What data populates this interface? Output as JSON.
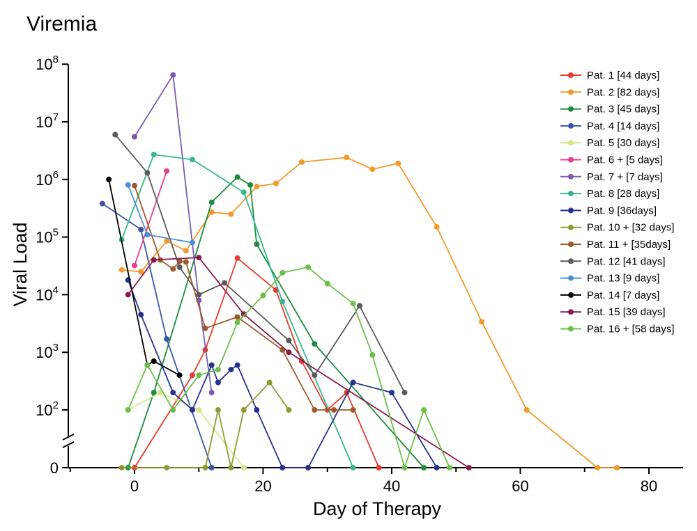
{
  "chart_data": {
    "type": "line",
    "title": "Viremia",
    "xlabel": "Day of Therapy",
    "ylabel": "Viral Load",
    "yscale": "log with zero break",
    "xlim": [
      -10,
      85
    ],
    "ylim": [
      0,
      100000000
    ],
    "x_ticks": [
      "0",
      "20",
      "40",
      "60",
      "80"
    ],
    "x_tick_values": [
      0,
      20,
      40,
      60,
      80
    ],
    "y_ticks": [
      {
        "base": "10",
        "exp": "8",
        "value": 100000000
      },
      {
        "base": "10",
        "exp": "7",
        "value": 10000000
      },
      {
        "base": "10",
        "exp": "6",
        "value": 1000000
      },
      {
        "base": "10",
        "exp": "5",
        "value": 100000
      },
      {
        "base": "10",
        "exp": "4",
        "value": 10000
      },
      {
        "base": "10",
        "exp": "3",
        "value": 1000
      },
      {
        "base": "10",
        "exp": "2",
        "value": 100
      },
      {
        "base": "0",
        "exp": "",
        "value": 0
      }
    ],
    "grid": false,
    "legend_position": "right",
    "series": [
      {
        "name": "Pat. 1 [44 days]",
        "color": "#e8392b",
        "points": [
          [
            0,
            0
          ],
          [
            9,
            400
          ],
          [
            11,
            1100
          ],
          [
            16,
            43000
          ],
          [
            22,
            12000
          ],
          [
            26,
            700
          ],
          [
            30,
            100
          ],
          [
            33,
            200
          ],
          [
            38,
            0
          ]
        ]
      },
      {
        "name": "Pat. 2 [82 days]",
        "color": "#f39a2a",
        "points": [
          [
            -2,
            27000
          ],
          [
            1,
            25000
          ],
          [
            5,
            85000
          ],
          [
            8,
            58000
          ],
          [
            12,
            270000
          ],
          [
            15,
            250000
          ],
          [
            19,
            750000
          ],
          [
            22,
            850000
          ],
          [
            26,
            2000000
          ],
          [
            33,
            2400000
          ],
          [
            37,
            1500000
          ],
          [
            41,
            1900000
          ],
          [
            47,
            150000
          ],
          [
            54,
            3400
          ],
          [
            61,
            100
          ],
          [
            72,
            0
          ],
          [
            75,
            0
          ]
        ]
      },
      {
        "name": "Pat. 3 [45 days]",
        "color": "#1a8c3c",
        "points": [
          [
            -1,
            0
          ],
          [
            3,
            200
          ],
          [
            12,
            400000
          ],
          [
            16,
            1100000
          ],
          [
            18,
            800000
          ],
          [
            19,
            75000
          ],
          [
            28,
            1400
          ],
          [
            45,
            0
          ]
        ]
      },
      {
        "name": "Pat. 4 [14 days]",
        "color": "#3a56a8",
        "points": [
          [
            -5,
            380000
          ],
          [
            1,
            135000
          ],
          [
            5,
            1700
          ],
          [
            12,
            0
          ]
        ]
      },
      {
        "name": "Pat. 5 [30 days]",
        "color": "#d4e68a",
        "points": [
          [
            -1,
            100
          ],
          [
            4,
            200
          ],
          [
            10,
            100
          ],
          [
            17,
            0
          ]
        ]
      },
      {
        "name": "Pat. 6 + [5 days]",
        "color": "#e83e8c",
        "points": [
          [
            0,
            32000
          ],
          [
            5,
            1400000
          ]
        ]
      },
      {
        "name": "Pat. 7 + [7 days]",
        "color": "#7a5ab5",
        "points": [
          [
            0,
            5500000
          ],
          [
            6,
            65000000
          ],
          [
            10,
            8000
          ],
          [
            12,
            200
          ]
        ]
      },
      {
        "name": "Pat. 8 [28 days]",
        "color": "#34b88a",
        "points": [
          [
            -2,
            90000
          ],
          [
            3,
            2700000
          ],
          [
            9,
            2200000
          ],
          [
            17,
            600000
          ],
          [
            23,
            7600
          ],
          [
            34,
            0
          ]
        ]
      },
      {
        "name": "Pat. 9 [36days]",
        "color": "#27318f",
        "points": [
          [
            -1,
            18000
          ],
          [
            1,
            4500
          ],
          [
            6,
            200
          ],
          [
            9,
            100
          ],
          [
            12,
            600
          ],
          [
            13,
            300
          ],
          [
            15,
            500
          ],
          [
            16,
            600
          ],
          [
            19,
            100
          ],
          [
            23,
            0
          ],
          [
            27,
            0
          ],
          [
            34,
            300
          ],
          [
            40,
            200
          ],
          [
            47,
            0
          ]
        ]
      },
      {
        "name": "Pat. 10 + [32 days]",
        "color": "#8f9a35",
        "points": [
          [
            -2,
            0
          ],
          [
            5,
            0
          ],
          [
            11,
            0
          ],
          [
            13,
            100
          ],
          [
            15,
            0
          ],
          [
            17,
            100
          ],
          [
            21,
            300
          ],
          [
            24,
            100
          ]
        ]
      },
      {
        "name": "Pat. 11 + [35days]",
        "color": "#9a5a2a",
        "points": [
          [
            0,
            780000
          ],
          [
            4,
            40000
          ],
          [
            6,
            28000
          ],
          [
            7,
            38000
          ],
          [
            8,
            37000
          ],
          [
            11,
            2600
          ],
          [
            16,
            4100
          ],
          [
            23,
            1100
          ],
          [
            28,
            100
          ],
          [
            31,
            100
          ],
          [
            34,
            100
          ]
        ]
      },
      {
        "name": "Pat. 12 [41 days]",
        "color": "#5a5a5a",
        "points": [
          [
            -3,
            6000000
          ],
          [
            2,
            1300000
          ],
          [
            7,
            30000
          ],
          [
            10,
            10000
          ],
          [
            14,
            16000
          ],
          [
            24,
            1600
          ],
          [
            28,
            400
          ],
          [
            35,
            6400
          ],
          [
            42,
            200
          ]
        ]
      },
      {
        "name": "Pat. 13 [9 days]",
        "color": "#4a90d9",
        "points": [
          [
            -1,
            800000
          ],
          [
            2,
            110000
          ],
          [
            9,
            80000
          ]
        ]
      },
      {
        "name": "Pat. 14 [7 days]",
        "color": "#000000",
        "points": [
          [
            -4,
            1000000
          ],
          [
            2,
            600
          ],
          [
            3,
            700
          ],
          [
            7,
            400
          ]
        ]
      },
      {
        "name": "Pat. 15 [39 days]",
        "color": "#8a1a4a",
        "points": [
          [
            -1,
            10000
          ],
          [
            3,
            40000
          ],
          [
            10,
            44000
          ],
          [
            17,
            4600
          ],
          [
            24,
            1000
          ],
          [
            52,
            0
          ]
        ]
      },
      {
        "name": "Pat. 16 + [58 days]",
        "color": "#6cc04a",
        "points": [
          [
            -1,
            100
          ],
          [
            2,
            600
          ],
          [
            6,
            100
          ],
          [
            10,
            400
          ],
          [
            13,
            500
          ],
          [
            16,
            3300
          ],
          [
            20,
            9700
          ],
          [
            23,
            24000
          ],
          [
            27,
            30000
          ],
          [
            30,
            15500
          ],
          [
            34,
            7000
          ],
          [
            37,
            900
          ],
          [
            42,
            0
          ],
          [
            45,
            100
          ],
          [
            49,
            0
          ]
        ]
      }
    ]
  }
}
